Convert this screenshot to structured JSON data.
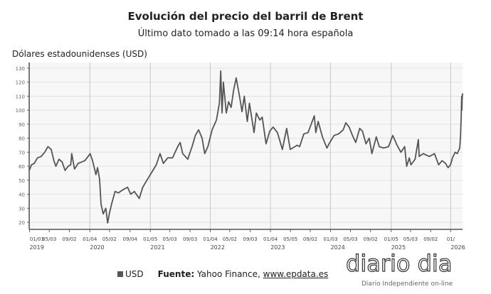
{
  "chart_data": {
    "type": "line",
    "title": "Evolución del precio del barril de Brent",
    "subtitle": "Último dato tomado a las 09:14 hora española",
    "ylabel": "Dólares estadounidenses (USD)",
    "xlabel": "",
    "ylim": [
      15,
      133
    ],
    "yticks": [
      20,
      30,
      40,
      50,
      60,
      70,
      80,
      90,
      100,
      110,
      120,
      130
    ],
    "xlim": [
      "2019-01-01",
      "2026-03-14"
    ],
    "grid": true,
    "legend": "bottom",
    "series": [
      {
        "name": "USD",
        "color": "#555555",
        "points": [
          [
            "2019-01-02",
            57
          ],
          [
            "2019-01-15",
            61
          ],
          [
            "2019-02-01",
            62
          ],
          [
            "2019-02-20",
            66
          ],
          [
            "2019-03-15",
            67
          ],
          [
            "2019-04-05",
            70
          ],
          [
            "2019-04-25",
            74
          ],
          [
            "2019-05-15",
            72
          ],
          [
            "2019-05-31",
            64
          ],
          [
            "2019-06-12",
            60
          ],
          [
            "2019-07-01",
            65
          ],
          [
            "2019-07-20",
            63
          ],
          [
            "2019-08-07",
            57
          ],
          [
            "2019-08-25",
            60
          ],
          [
            "2019-09-10",
            61
          ],
          [
            "2019-09-16",
            69
          ],
          [
            "2019-10-03",
            58
          ],
          [
            "2019-10-25",
            62
          ],
          [
            "2019-11-15",
            63
          ],
          [
            "2019-12-05",
            64
          ],
          [
            "2019-12-31",
            68
          ],
          [
            "2020-01-06",
            69
          ],
          [
            "2020-01-20",
            64
          ],
          [
            "2020-02-10",
            54
          ],
          [
            "2020-02-20",
            59
          ],
          [
            "2020-03-03",
            51
          ],
          [
            "2020-03-12",
            33
          ],
          [
            "2020-03-25",
            26
          ],
          [
            "2020-04-10",
            30
          ],
          [
            "2020-04-21",
            19.5
          ],
          [
            "2020-05-01",
            26
          ],
          [
            "2020-05-15",
            33
          ],
          [
            "2020-06-05",
            42
          ],
          [
            "2020-06-25",
            41
          ],
          [
            "2020-07-20",
            43
          ],
          [
            "2020-08-20",
            45
          ],
          [
            "2020-09-08",
            40
          ],
          [
            "2020-09-30",
            42
          ],
          [
            "2020-10-30",
            37
          ],
          [
            "2020-11-20",
            45
          ],
          [
            "2020-12-15",
            50
          ],
          [
            "2021-01-10",
            55
          ],
          [
            "2021-02-10",
            61
          ],
          [
            "2021-03-05",
            69
          ],
          [
            "2021-03-25",
            62
          ],
          [
            "2021-04-20",
            66
          ],
          [
            "2021-05-20",
            66
          ],
          [
            "2021-06-20",
            74
          ],
          [
            "2021-07-05",
            77
          ],
          [
            "2021-07-20",
            69
          ],
          [
            "2021-08-20",
            65
          ],
          [
            "2021-09-15",
            74
          ],
          [
            "2021-10-05",
            82
          ],
          [
            "2021-10-25",
            86
          ],
          [
            "2021-11-15",
            80
          ],
          [
            "2021-12-01",
            69
          ],
          [
            "2021-12-20",
            74
          ],
          [
            "2022-01-15",
            86
          ],
          [
            "2022-02-10",
            93
          ],
          [
            "2022-02-28",
            105
          ],
          [
            "2022-03-08",
            128
          ],
          [
            "2022-03-16",
            98
          ],
          [
            "2022-03-24",
            120
          ],
          [
            "2022-04-11",
            98
          ],
          [
            "2022-04-25",
            106
          ],
          [
            "2022-05-10",
            102
          ],
          [
            "2022-05-25",
            114
          ],
          [
            "2022-06-10",
            123
          ],
          [
            "2022-06-30",
            110
          ],
          [
            "2022-07-15",
            99
          ],
          [
            "2022-07-29",
            110
          ],
          [
            "2022-08-16",
            92
          ],
          [
            "2022-08-29",
            105
          ],
          [
            "2022-09-26",
            84
          ],
          [
            "2022-10-10",
            98
          ],
          [
            "2022-10-31",
            93
          ],
          [
            "2022-11-15",
            95
          ],
          [
            "2022-12-08",
            76
          ],
          [
            "2022-12-30",
            85
          ],
          [
            "2023-01-20",
            88
          ],
          [
            "2023-02-15",
            84
          ],
          [
            "2023-03-17",
            72
          ],
          [
            "2023-04-12",
            87
          ],
          [
            "2023-05-04",
            72
          ],
          [
            "2023-06-15",
            75
          ],
          [
            "2023-06-30",
            74
          ],
          [
            "2023-07-25",
            83
          ],
          [
            "2023-08-20",
            84
          ],
          [
            "2023-09-27",
            96
          ],
          [
            "2023-10-06",
            84
          ],
          [
            "2023-10-20",
            92
          ],
          [
            "2023-11-15",
            81
          ],
          [
            "2023-12-12",
            73
          ],
          [
            "2023-12-30",
            77
          ],
          [
            "2024-01-25",
            82
          ],
          [
            "2024-02-20",
            83
          ],
          [
            "2024-03-20",
            86
          ],
          [
            "2024-04-05",
            91
          ],
          [
            "2024-04-25",
            88
          ],
          [
            "2024-05-15",
            82
          ],
          [
            "2024-06-04",
            77
          ],
          [
            "2024-06-28",
            87
          ],
          [
            "2024-07-15",
            85
          ],
          [
            "2024-08-05",
            76
          ],
          [
            "2024-08-25",
            80
          ],
          [
            "2024-09-10",
            69
          ],
          [
            "2024-10-07",
            81
          ],
          [
            "2024-10-25",
            74
          ],
          [
            "2024-11-20",
            73
          ],
          [
            "2024-12-20",
            74
          ],
          [
            "2025-01-15",
            82
          ],
          [
            "2025-02-10",
            75
          ],
          [
            "2025-03-05",
            70
          ],
          [
            "2025-03-28",
            74
          ],
          [
            "2025-04-09",
            60
          ],
          [
            "2025-04-25",
            66
          ],
          [
            "2025-05-05",
            61
          ],
          [
            "2025-05-30",
            65
          ],
          [
            "2025-06-19",
            79
          ],
          [
            "2025-06-24",
            67
          ],
          [
            "2025-07-20",
            69
          ],
          [
            "2025-08-05",
            68
          ],
          [
            "2025-08-25",
            67
          ],
          [
            "2025-09-25",
            69
          ],
          [
            "2025-10-20",
            61
          ],
          [
            "2025-11-10",
            64
          ],
          [
            "2025-12-01",
            62
          ],
          [
            "2025-12-16",
            59
          ],
          [
            "2025-12-31",
            61
          ],
          [
            "2026-01-12",
            66
          ],
          [
            "2026-01-28",
            70
          ],
          [
            "2026-02-10",
            69
          ],
          [
            "2026-02-25",
            73
          ],
          [
            "2026-03-02",
            82
          ],
          [
            "2026-03-06",
            95
          ],
          [
            "2026-03-09",
            110
          ],
          [
            "2026-03-10",
            100
          ],
          [
            "2026-03-12",
            108
          ],
          [
            "2026-03-14",
            112
          ]
        ]
      }
    ],
    "xticks": [
      {
        "date": "2019-01-03",
        "label": "01/03",
        "year": "2019"
      },
      {
        "date": "2019-05-03",
        "label": "05/03"
      },
      {
        "date": "2019-09-02",
        "label": "09/02"
      },
      {
        "date": "2020-01-04",
        "label": "01/04",
        "year": "2020"
      },
      {
        "date": "2020-05-02",
        "label": "05/02"
      },
      {
        "date": "2020-09-04",
        "label": "09/04"
      },
      {
        "date": "2021-01-05",
        "label": "01/05",
        "year": "2021"
      },
      {
        "date": "2021-05-03",
        "label": "05/03"
      },
      {
        "date": "2021-09-03",
        "label": "09/03"
      },
      {
        "date": "2022-01-04",
        "label": "01/04",
        "year": "2022"
      },
      {
        "date": "2022-05-02",
        "label": "05/02"
      },
      {
        "date": "2022-09-03",
        "label": "09/03"
      },
      {
        "date": "2023-01-04",
        "label": "01/04",
        "year": "2023"
      },
      {
        "date": "2023-05-05",
        "label": "05/05"
      },
      {
        "date": "2023-09-02",
        "label": "09/02"
      },
      {
        "date": "2024-01-03",
        "label": "01/03",
        "year": "2024"
      },
      {
        "date": "2024-05-03",
        "label": "05/03"
      },
      {
        "date": "2024-09-02",
        "label": "09/02"
      },
      {
        "date": "2025-01-05",
        "label": "01/05",
        "year": "2025"
      },
      {
        "date": "2025-05-03",
        "label": "05/03"
      },
      {
        "date": "2025-09-02",
        "label": "09/02"
      },
      {
        "date": "2026-01-01",
        "label": "01/",
        "year": "2026"
      }
    ]
  },
  "legend": {
    "series_label": "USD"
  },
  "source": {
    "label": "Fuente:",
    "text": "Yahoo Finance,",
    "link": "www.epdata.es"
  },
  "logo": {
    "name": "diario dia",
    "tagline": "Diario Independiente on-line"
  }
}
